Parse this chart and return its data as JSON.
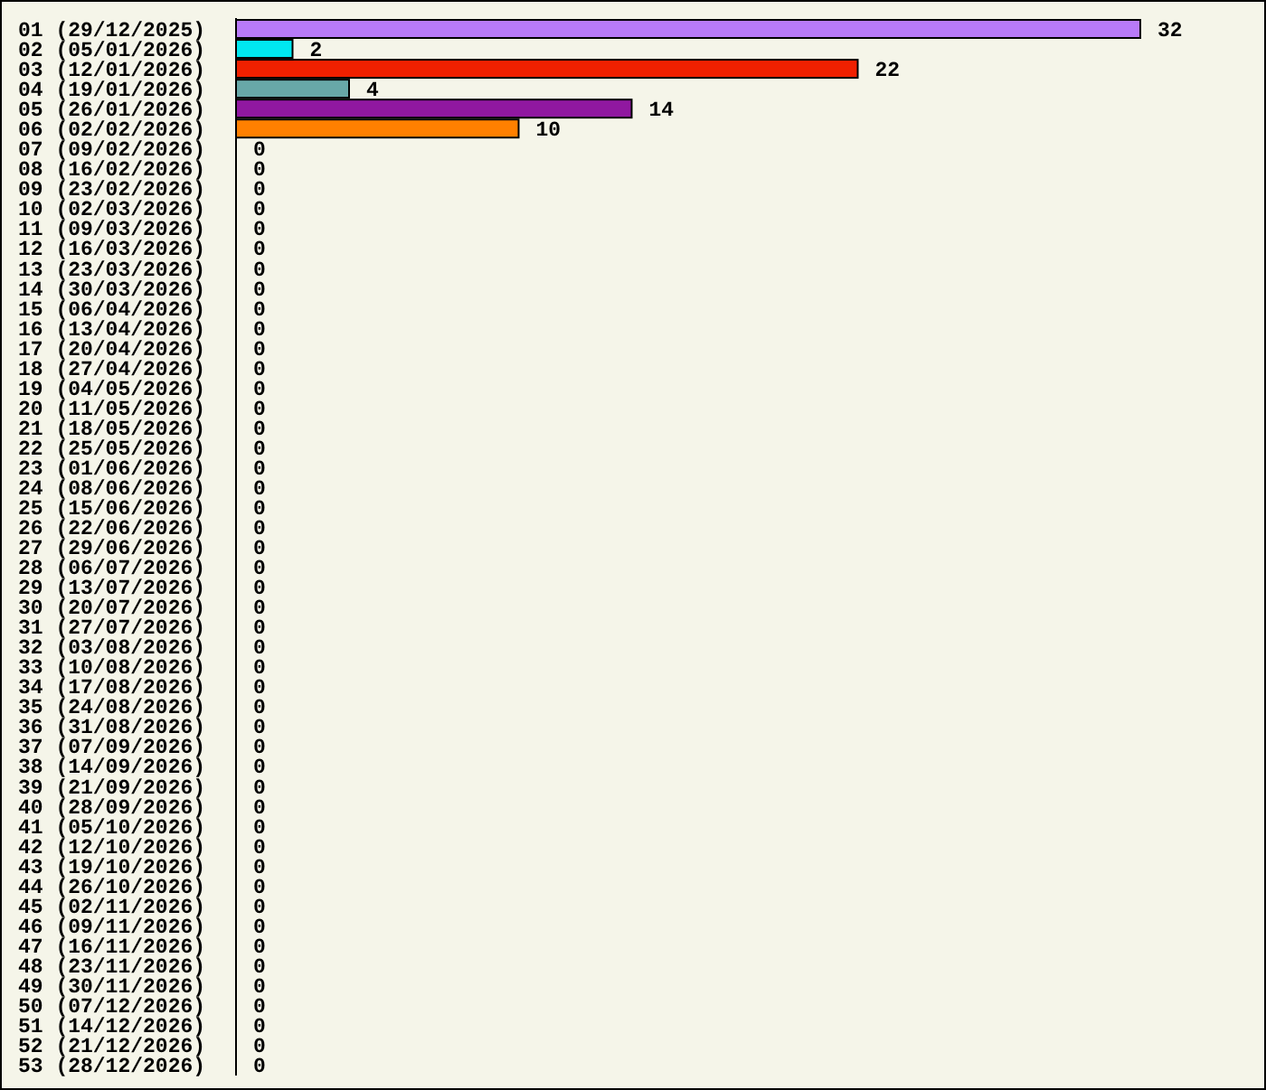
{
  "chart_data": {
    "type": "bar",
    "orientation": "horizontal",
    "data_labels": true,
    "categories": [
      "01 (29/12/2025)",
      "02 (05/01/2026)",
      "03 (12/01/2026)",
      "04 (19/01/2026)",
      "05 (26/01/2026)",
      "06 (02/02/2026)",
      "07 (09/02/2026)",
      "08 (16/02/2026)",
      "09 (23/02/2026)",
      "10 (02/03/2026)",
      "11 (09/03/2026)",
      "12 (16/03/2026)",
      "13 (23/03/2026)",
      "14 (30/03/2026)",
      "15 (06/04/2026)",
      "16 (13/04/2026)",
      "17 (20/04/2026)",
      "18 (27/04/2026)",
      "19 (04/05/2026)",
      "20 (11/05/2026)",
      "21 (18/05/2026)",
      "22 (25/05/2026)",
      "23 (01/06/2026)",
      "24 (08/06/2026)",
      "25 (15/06/2026)",
      "26 (22/06/2026)",
      "27 (29/06/2026)",
      "28 (06/07/2026)",
      "29 (13/07/2026)",
      "30 (20/07/2026)",
      "31 (27/07/2026)",
      "32 (03/08/2026)",
      "33 (10/08/2026)",
      "34 (17/08/2026)",
      "35 (24/08/2026)",
      "36 (31/08/2026)",
      "37 (07/09/2026)",
      "38 (14/09/2026)",
      "39 (21/09/2026)",
      "40 (28/09/2026)",
      "41 (05/10/2026)",
      "42 (12/10/2026)",
      "43 (19/10/2026)",
      "44 (26/10/2026)",
      "45 (02/11/2026)",
      "46 (09/11/2026)",
      "47 (16/11/2026)",
      "48 (23/11/2026)",
      "49 (30/11/2026)",
      "50 (07/12/2026)",
      "51 (14/12/2026)",
      "52 (21/12/2026)",
      "53 (28/12/2026)"
    ],
    "values": [
      32,
      2,
      22,
      4,
      14,
      10,
      0,
      0,
      0,
      0,
      0,
      0,
      0,
      0,
      0,
      0,
      0,
      0,
      0,
      0,
      0,
      0,
      0,
      0,
      0,
      0,
      0,
      0,
      0,
      0,
      0,
      0,
      0,
      0,
      0,
      0,
      0,
      0,
      0,
      0,
      0,
      0,
      0,
      0,
      0,
      0,
      0,
      0,
      0,
      0,
      0,
      0,
      0
    ],
    "colors": [
      "#b87af8",
      "#00e8f0",
      "#f02000",
      "#68a8a8",
      "#9018a0",
      "#ff8000",
      null,
      null,
      null,
      null,
      null,
      null,
      null,
      null,
      null,
      null,
      null,
      null,
      null,
      null,
      null,
      null,
      null,
      null,
      null,
      null,
      null,
      null,
      null,
      null,
      null,
      null,
      null,
      null,
      null,
      null,
      null,
      null,
      null,
      null,
      null,
      null,
      null,
      null,
      null,
      null,
      null,
      null,
      null,
      null,
      null,
      null,
      null
    ]
  }
}
